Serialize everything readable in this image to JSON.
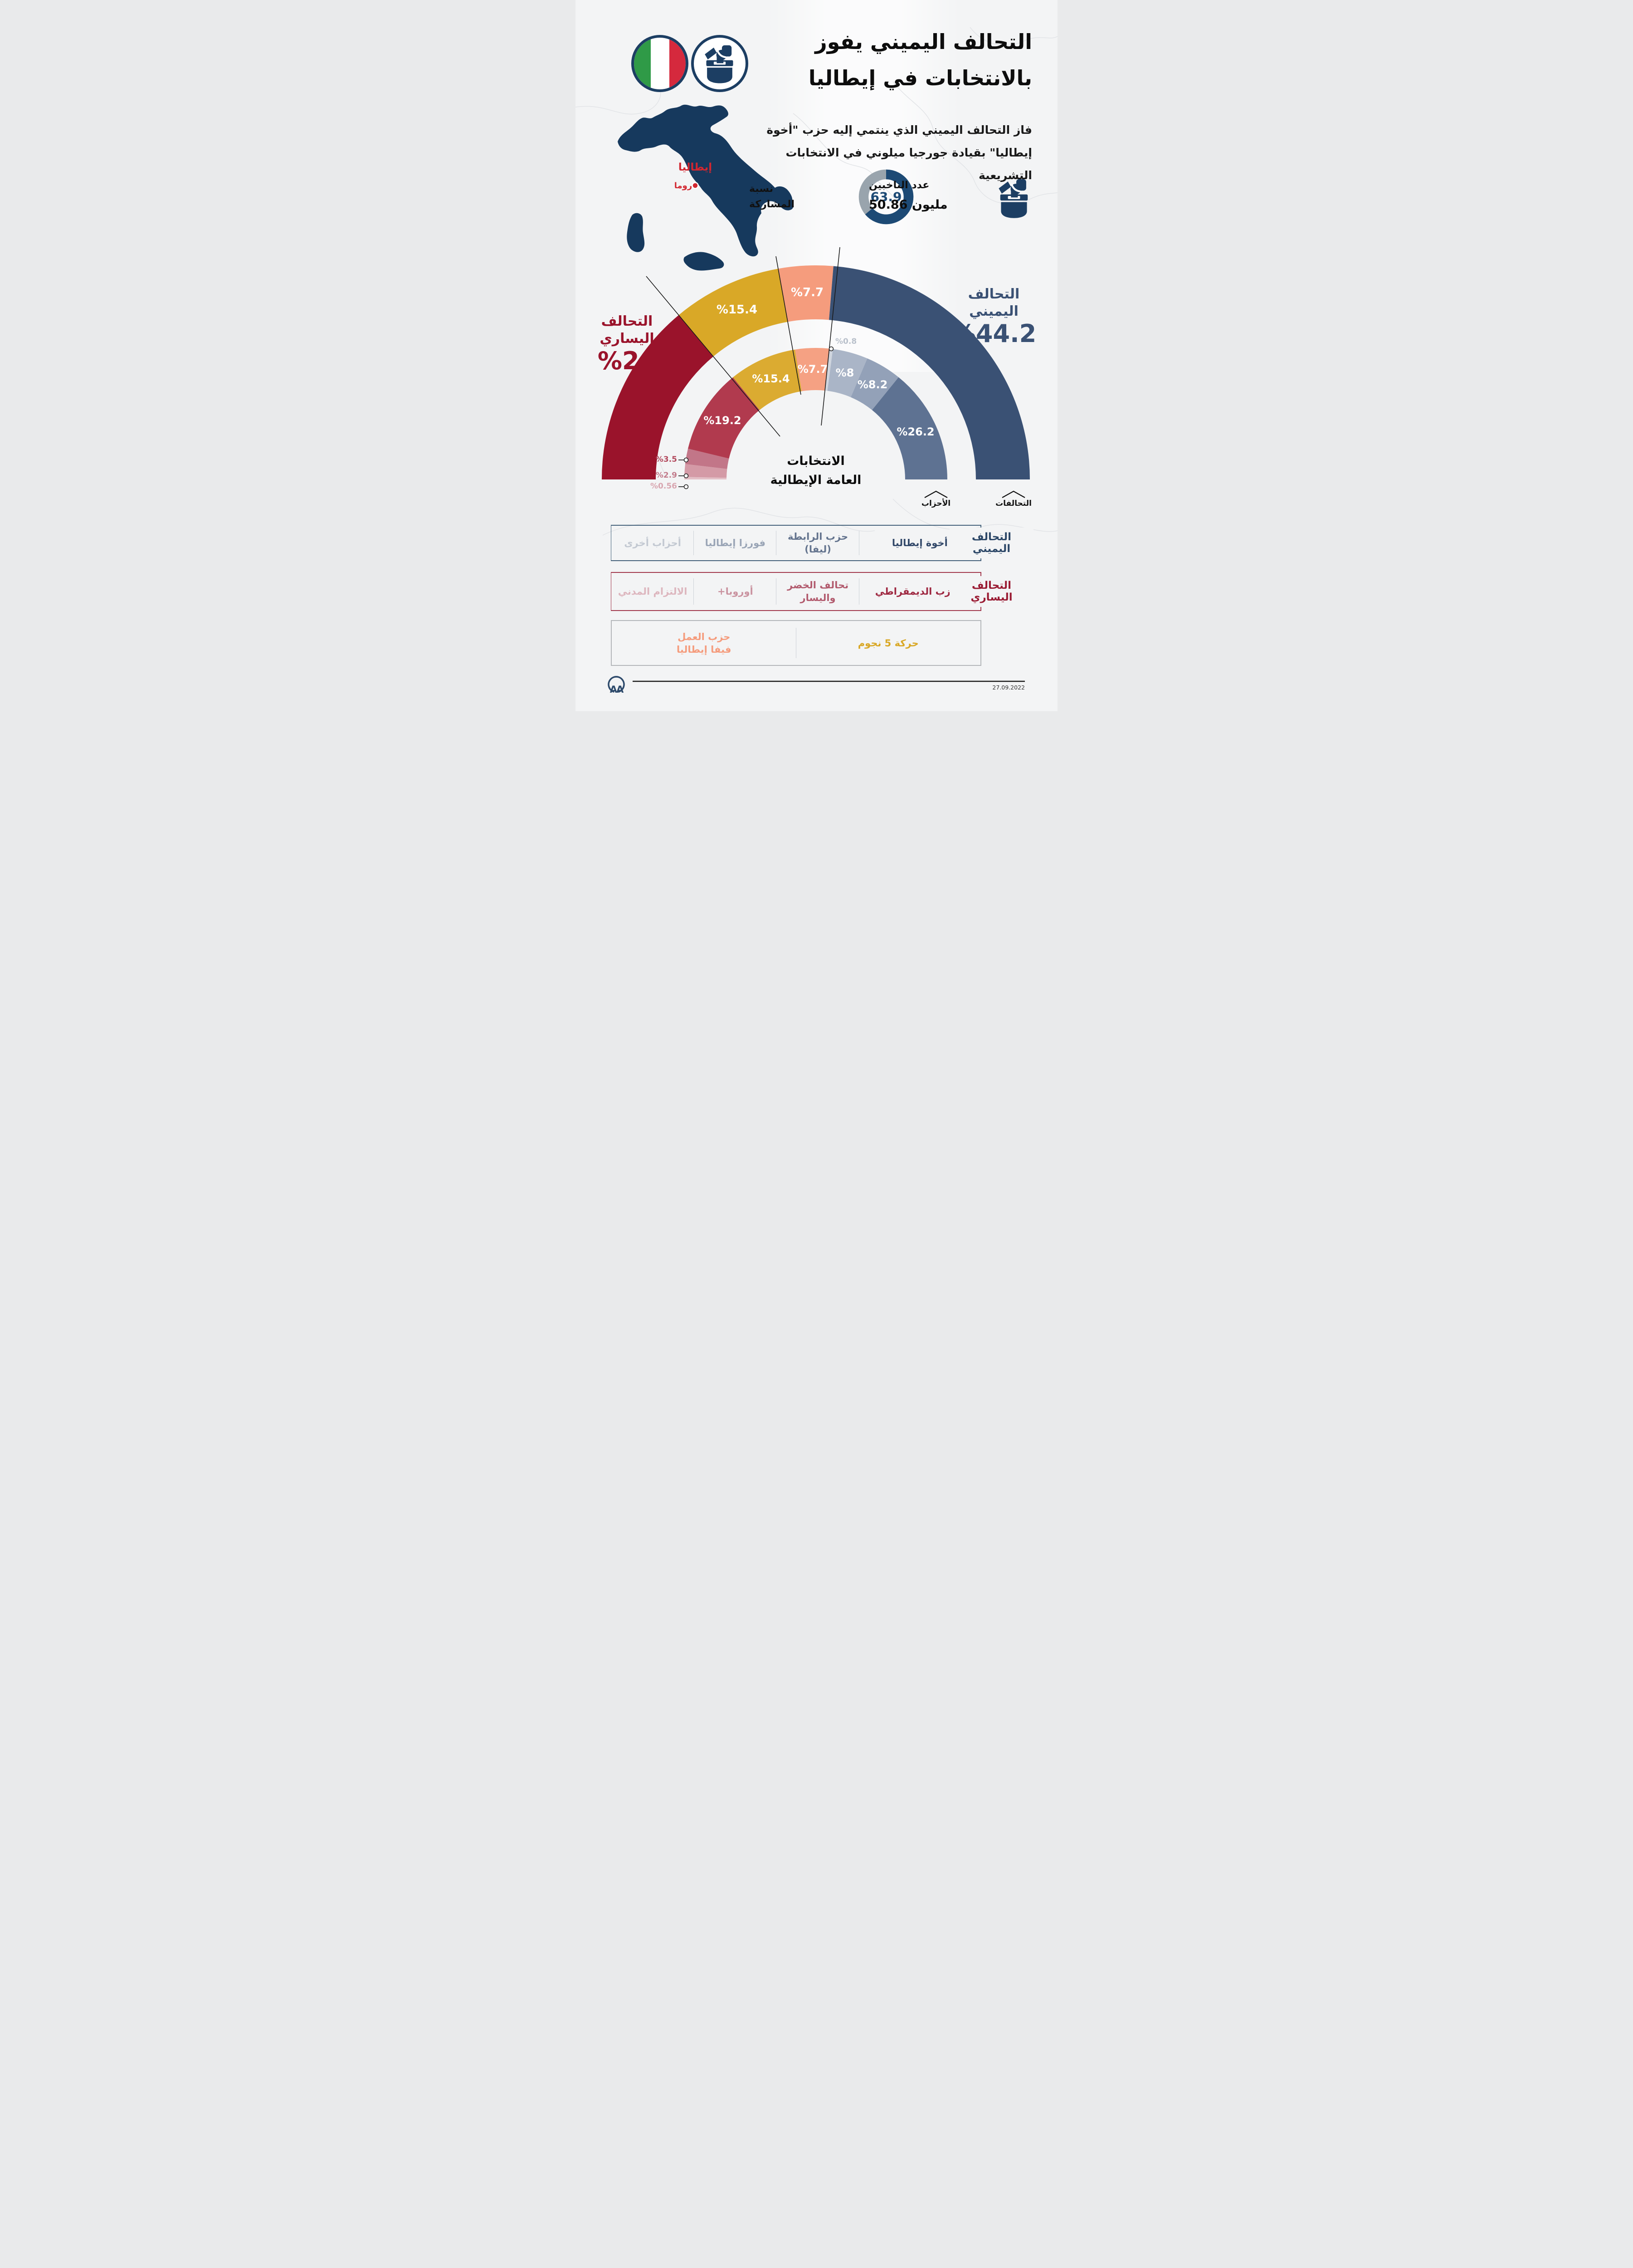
{
  "header": {
    "title": "التحالف اليميني يفوز\nبالانتخابات في إيطاليا",
    "subtitle": "فاز التحالف اليميني الذي ينتمي إليه حزب \"أخوة\nإيطاليا\" بقيادة جورجيا ميلوني في الانتخابات  التشريعية",
    "flag_icon": "italy-flag-icon",
    "ballot_icon": "ballot-box-icon"
  },
  "map": {
    "country_label": "إيطاليا",
    "capital_label": "روما"
  },
  "stats": {
    "participation": {
      "label": "نسبة\nالمشاركة",
      "value": "63.9",
      "pct": 63.9,
      "ring_color": "#1d4a75",
      "rest_color": "#99a4ad"
    },
    "voters": {
      "label": "عدد الناخبين",
      "value": "50.86 مليون"
    }
  },
  "chart_data": {
    "type": "half-donut",
    "title": "الانتخابات\nالعامة الإيطالية",
    "inner_ring_label": "الأحزاب",
    "outer_ring_label": "التحالفات",
    "rings": [
      {
        "name": "التحالفات",
        "segments": [
          {
            "name": "التحالف اليساري",
            "value": 26,
            "color": "#9a132b",
            "label_inside": false
          },
          {
            "name": "حركة 5 نجوم",
            "value": 15.4,
            "color": "#d9a827",
            "label_inside": true
          },
          {
            "name": "حزب العمل - فيفا إيطاليا",
            "value": 7.7,
            "color": "#f59c7d",
            "label_inside": true
          },
          {
            "name": "التحالف اليميني",
            "value": 44.2,
            "color": "#3a5174",
            "label_inside": false
          }
        ]
      },
      {
        "name": "الأحزاب",
        "segments": [
          {
            "name": "الالتزام المدني",
            "value": 0.56,
            "color": "#e3bfc6",
            "label_inside": false,
            "label_color": "#d8a6b0"
          },
          {
            "name": "+أوروبا",
            "value": 2.9,
            "color": "#d49aa6",
            "label_inside": false,
            "label_color": "#c27b8b"
          },
          {
            "name": "تحالف الخضر واليسار",
            "value": 3.5,
            "color": "#c27688",
            "label_inside": false,
            "label_color": "#b2495d"
          },
          {
            "name": "الحزب الديمقراطي",
            "value": 19.2,
            "color": "#b13a4e",
            "label_inside": true
          },
          {
            "name": "حركة 5 نجوم",
            "value": 15.4,
            "color": "#dbab31",
            "label_inside": true
          },
          {
            "name": "حزب العمل - فيفا إيطاليا",
            "value": 7.7,
            "color": "#f5a183",
            "label_inside": true
          },
          {
            "name": "أحزاب أخرى",
            "value": 0.8,
            "color": "#cfd5de",
            "label_inside": false,
            "label_color": "#b9c0cb"
          },
          {
            "name": "فورزا إيطاليا",
            "value": 8,
            "color": "#aab5c7",
            "label_inside": true
          },
          {
            "name": "حزب الرابطة (ليفا)",
            "value": 8.2,
            "color": "#93a1b8",
            "label_inside": true
          },
          {
            "name": "أخوة إيطاليا",
            "value": 26.2,
            "color": "#5e7292",
            "label_inside": true
          }
        ]
      }
    ],
    "callouts": {
      "left": {
        "name": "التحالف اليساري",
        "pct": "%26"
      },
      "right": {
        "name": "التحالف اليميني",
        "pct": "%44.2"
      }
    },
    "side_labels": {
      "l35": "%3.5",
      "l29": "%2.9",
      "l056": "%0.56",
      "l08": "%0.8"
    }
  },
  "legend": {
    "rows": [
      {
        "title": "التحالف اليميني",
        "items": [
          {
            "label": "أخوة إيطاليا",
            "color": "#33496a"
          },
          {
            "label": "حزب الرابطة\n(ليفا)",
            "color": "#64748e"
          },
          {
            "label": "فورزا إيطاليا",
            "color": "#9aa5b6"
          },
          {
            "label": "أحزاب أخرى",
            "color": "#c3c9d2"
          }
        ]
      },
      {
        "title": "التحالف اليساري",
        "items": [
          {
            "label": "الحزب الديمقراطي",
            "color": "#9e2841"
          },
          {
            "label": "تحالف الخضر\nواليسار",
            "color": "#b25b6e"
          },
          {
            "label": "+أوروبا",
            "color": "#ca93a0",
            "dir": "ltr"
          },
          {
            "label": "الالتزام المدني",
            "color": "#ddb6be"
          }
        ]
      },
      {
        "title": "",
        "items": [
          {
            "label": "حركة 5 نجوم",
            "color": "#d9a827"
          },
          {
            "label": "حزب العمل\nفيفا إيطاليا",
            "color": "#f59c7d"
          }
        ]
      }
    ]
  },
  "footer": {
    "agency_logo": "aa-logo",
    "date": "27.09.2022"
  }
}
